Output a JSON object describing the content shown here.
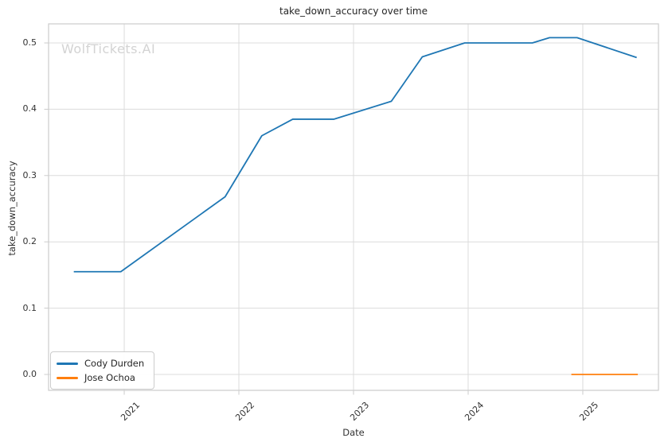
{
  "chart_data": {
    "type": "line",
    "title": "take_down_accuracy over time",
    "xlabel": "Date",
    "ylabel": "take_down_accuracy",
    "watermark": "WolfTickets.AI",
    "grid": true,
    "legend": {
      "position": "lower left"
    },
    "xlim": [
      2020.34,
      2025.66
    ],
    "ylim": [
      -0.024,
      0.5288
    ],
    "xticks": {
      "values": [
        2021,
        2022,
        2023,
        2024,
        2025
      ],
      "labels": [
        "2021",
        "2022",
        "2023",
        "2024",
        "2025"
      ]
    },
    "yticks": {
      "values": [
        0.0,
        0.1,
        0.2,
        0.3,
        0.4,
        0.5
      ],
      "labels": [
        "0.0",
        "0.1",
        "0.2",
        "0.3",
        "0.4",
        "0.5"
      ]
    },
    "colors": {
      "line_blue": "#1f77b4",
      "line_orange": "#ff7f0e",
      "grid": "#dcdcdc",
      "spine": "#cccccc",
      "text": "#333333",
      "watermark": "#d3d3d3"
    },
    "series": [
      {
        "name": "Cody Durden",
        "color": "#1f77b4",
        "x": [
          2020.56,
          2020.97,
          2021.88,
          2022.2,
          2022.47,
          2022.83,
          2023.33,
          2023.6,
          2023.97,
          2024.56,
          2024.71,
          2024.95,
          2025.47
        ],
        "y": [
          0.155,
          0.155,
          0.268,
          0.36,
          0.385,
          0.385,
          0.412,
          0.479,
          0.5,
          0.5,
          0.508,
          0.508,
          0.478
        ]
      },
      {
        "name": "Jose Ochoa",
        "color": "#ff7f0e",
        "x": [
          2024.9,
          2025.48
        ],
        "y": [
          0.0,
          0.0
        ]
      }
    ]
  }
}
